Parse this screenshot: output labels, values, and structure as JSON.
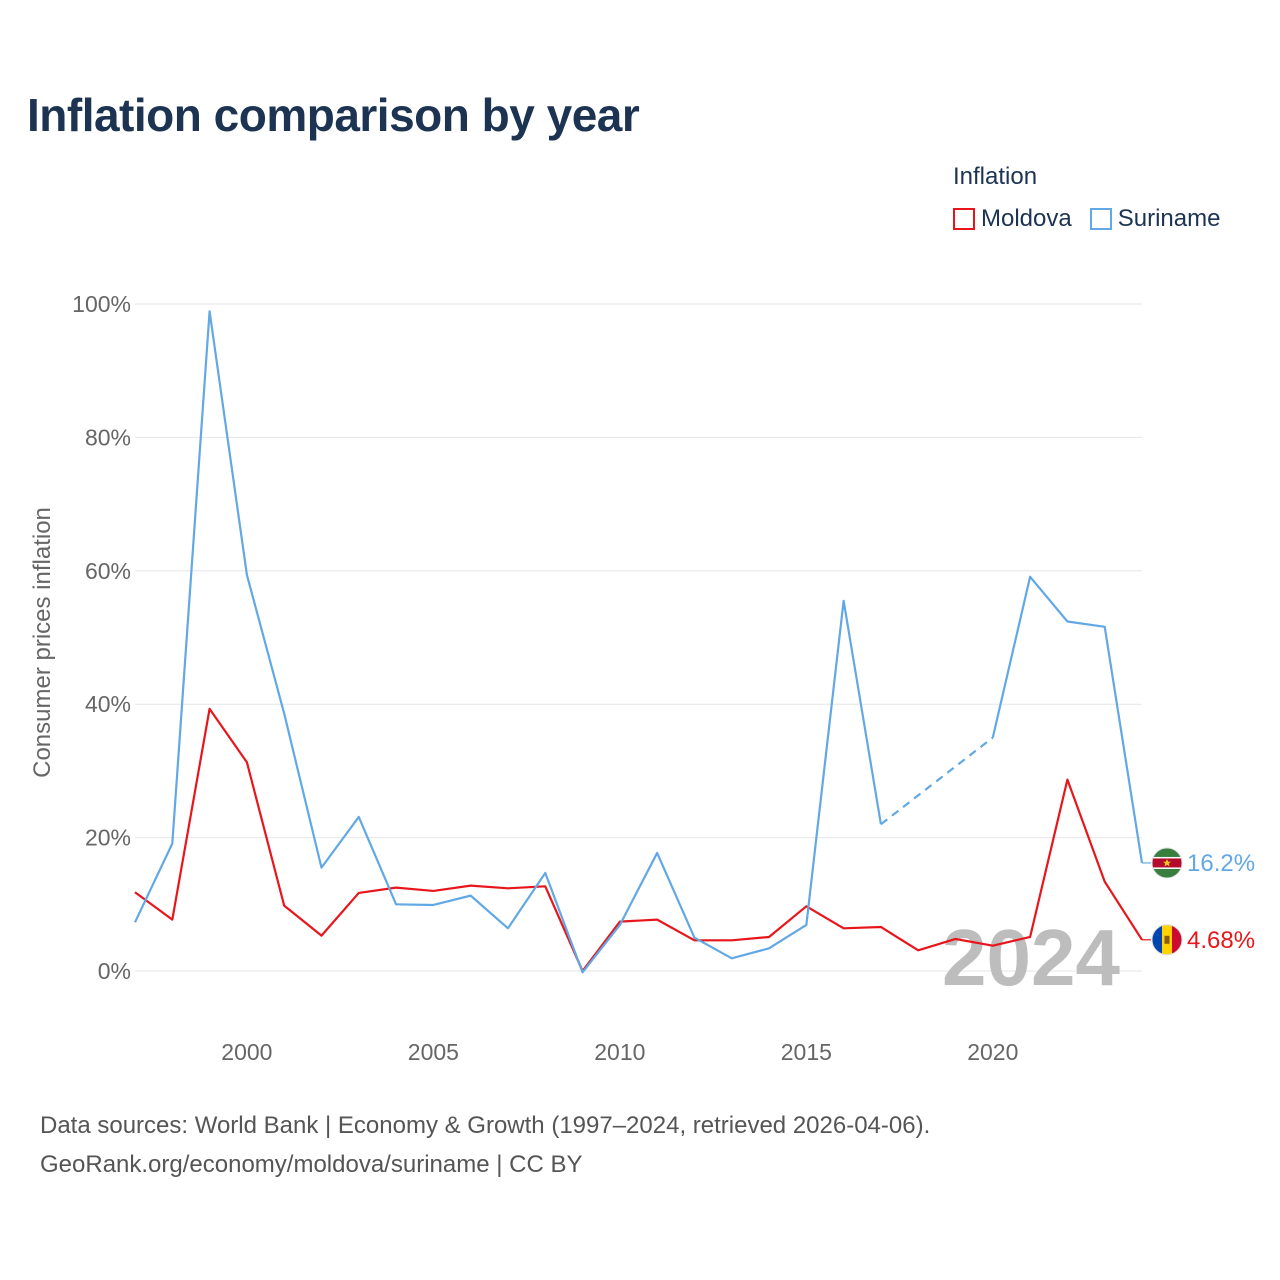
{
  "title": "Inflation comparison by year",
  "legend": {
    "title": "Inflation",
    "items": [
      {
        "label": "Moldova",
        "color": "#e8161b"
      },
      {
        "label": "Suriname",
        "color": "#62a8e5"
      }
    ]
  },
  "footer": {
    "line1": "Data sources: World Bank | Economy & Growth (1997–2024, retrieved 2026-04-06).",
    "line2": "GeoRank.org/economy/moldova/suriname | CC BY"
  },
  "chart_data": {
    "type": "line",
    "title": "Inflation comparison by year",
    "xlabel": "",
    "ylabel": "Consumer prices inflation",
    "xlim": [
      1997,
      2024
    ],
    "ylim": [
      0,
      100
    ],
    "xticks": [
      2000,
      2005,
      2010,
      2015,
      2020
    ],
    "xtick_labels": [
      "2000",
      "2005",
      "2010",
      "2015",
      "2020"
    ],
    "yticks": [
      0,
      20,
      40,
      60,
      80,
      100
    ],
    "ytick_labels": [
      "0%",
      "20%",
      "40%",
      "60%",
      "80%",
      "100%"
    ],
    "grid": true,
    "legend_position": "top-right",
    "watermark": "2024",
    "x": [
      1997,
      1998,
      1999,
      2000,
      2001,
      2002,
      2003,
      2004,
      2005,
      2006,
      2007,
      2008,
      2009,
      2010,
      2011,
      2012,
      2013,
      2014,
      2015,
      2016,
      2017,
      2018,
      2019,
      2020,
      2021,
      2022,
      2023,
      2024
    ],
    "series": [
      {
        "name": "Moldova",
        "color": "#e8161b",
        "end_label": "4.68%",
        "values": [
          11.8,
          7.7,
          39.3,
          31.3,
          9.8,
          5.3,
          11.7,
          12.5,
          12.0,
          12.8,
          12.4,
          12.7,
          0.0,
          7.4,
          7.7,
          4.6,
          4.6,
          5.1,
          9.7,
          6.4,
          6.6,
          3.1,
          4.8,
          3.8,
          5.1,
          28.7,
          13.4,
          4.68
        ]
      },
      {
        "name": "Suriname",
        "color": "#62a8e5",
        "end_label": "16.2%",
        "dashed_gap": [
          2017,
          2020
        ],
        "values": [
          7.3,
          19.1,
          98.9,
          59.4,
          38.6,
          15.5,
          23.1,
          10.0,
          9.9,
          11.3,
          6.4,
          14.7,
          -0.2,
          6.9,
          17.7,
          5.0,
          1.9,
          3.4,
          6.9,
          55.5,
          22.0,
          null,
          null,
          35.0,
          59.1,
          52.4,
          51.6,
          16.2
        ]
      }
    ]
  }
}
